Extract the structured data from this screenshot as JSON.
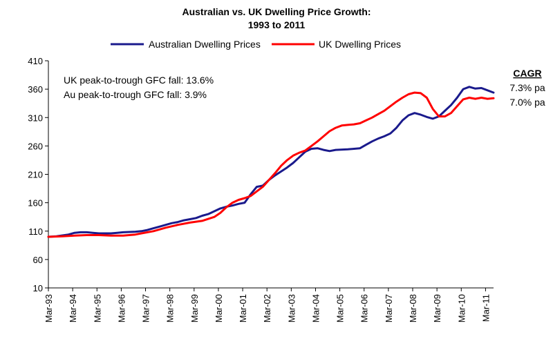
{
  "chart_data": {
    "type": "line",
    "title": "Australian vs. UK  Dwelling Price Growth:",
    "subtitle": "1993 to 2011",
    "xlabel": "",
    "ylabel": "",
    "ylim": [
      10,
      410
    ],
    "yticks": [
      10,
      60,
      110,
      160,
      210,
      260,
      310,
      360,
      410
    ],
    "xticks": [
      "Mar-93",
      "Mar-94",
      "Mar-95",
      "Mar-96",
      "Mar-97",
      "Mar-98",
      "Mar-99",
      "Mar-00",
      "Mar-01",
      "Mar-02",
      "Mar-03",
      "Mar-04",
      "Mar-05",
      "Mar-06",
      "Mar-07",
      "Mar-08",
      "Mar-09",
      "Mar-10",
      "Mar-11"
    ],
    "xrange": [
      1993.17,
      2011.5
    ],
    "legend": "top",
    "grid": false,
    "series": [
      {
        "name": "Australian Dwelling Prices",
        "color": "#1a1a8c",
        "points": [
          [
            1993.17,
            100
          ],
          [
            1993.5,
            101
          ],
          [
            1994.0,
            104
          ],
          [
            1994.25,
            107
          ],
          [
            1994.5,
            108
          ],
          [
            1994.75,
            108
          ],
          [
            1995.0,
            107
          ],
          [
            1995.25,
            106
          ],
          [
            1995.75,
            106
          ],
          [
            1996.0,
            107
          ],
          [
            1996.25,
            108
          ],
          [
            1996.75,
            109
          ],
          [
            1997.0,
            110
          ],
          [
            1997.25,
            112
          ],
          [
            1997.5,
            115
          ],
          [
            1997.75,
            118
          ],
          [
            1998.0,
            121
          ],
          [
            1998.25,
            124
          ],
          [
            1998.5,
            126
          ],
          [
            1998.75,
            129
          ],
          [
            1999.0,
            131
          ],
          [
            1999.25,
            133
          ],
          [
            1999.5,
            137
          ],
          [
            1999.75,
            140
          ],
          [
            2000.0,
            145
          ],
          [
            2000.25,
            150
          ],
          [
            2000.5,
            153
          ],
          [
            2000.75,
            155
          ],
          [
            2001.0,
            158
          ],
          [
            2001.25,
            160
          ],
          [
            2001.5,
            175
          ],
          [
            2001.75,
            188
          ],
          [
            2002.0,
            190
          ],
          [
            2002.25,
            200
          ],
          [
            2002.5,
            208
          ],
          [
            2002.75,
            215
          ],
          [
            2003.0,
            222
          ],
          [
            2003.25,
            230
          ],
          [
            2003.5,
            240
          ],
          [
            2003.75,
            250
          ],
          [
            2004.0,
            255
          ],
          [
            2004.25,
            256
          ],
          [
            2004.5,
            253
          ],
          [
            2004.75,
            251
          ],
          [
            2005.0,
            253
          ],
          [
            2005.5,
            254
          ],
          [
            2006.0,
            256
          ],
          [
            2006.25,
            262
          ],
          [
            2006.5,
            268
          ],
          [
            2006.75,
            273
          ],
          [
            2007.0,
            277
          ],
          [
            2007.25,
            282
          ],
          [
            2007.5,
            292
          ],
          [
            2007.75,
            305
          ],
          [
            2008.0,
            314
          ],
          [
            2008.25,
            318
          ],
          [
            2008.5,
            315
          ],
          [
            2008.75,
            311
          ],
          [
            2009.0,
            308
          ],
          [
            2009.25,
            312
          ],
          [
            2009.5,
            322
          ],
          [
            2009.75,
            332
          ],
          [
            2010.0,
            345
          ],
          [
            2010.25,
            360
          ],
          [
            2010.5,
            364
          ],
          [
            2010.75,
            361
          ],
          [
            2011.0,
            362
          ],
          [
            2011.25,
            358
          ],
          [
            2011.5,
            354
          ]
        ]
      },
      {
        "name": "UK Dwelling Prices",
        "color": "#ff0000",
        "points": [
          [
            1993.17,
            100
          ],
          [
            1993.75,
            101
          ],
          [
            1994.25,
            102
          ],
          [
            1994.75,
            103
          ],
          [
            1995.25,
            103
          ],
          [
            1995.75,
            102
          ],
          [
            1996.25,
            102
          ],
          [
            1996.75,
            104
          ],
          [
            1997.0,
            106
          ],
          [
            1997.5,
            110
          ],
          [
            1998.0,
            116
          ],
          [
            1998.5,
            121
          ],
          [
            1999.0,
            125
          ],
          [
            1999.5,
            128
          ],
          [
            2000.0,
            135
          ],
          [
            2000.25,
            142
          ],
          [
            2000.5,
            152
          ],
          [
            2000.75,
            160
          ],
          [
            2001.0,
            165
          ],
          [
            2001.25,
            168
          ],
          [
            2001.5,
            172
          ],
          [
            2001.75,
            180
          ],
          [
            2002.0,
            188
          ],
          [
            2002.25,
            200
          ],
          [
            2002.5,
            212
          ],
          [
            2002.75,
            225
          ],
          [
            2003.0,
            235
          ],
          [
            2003.25,
            243
          ],
          [
            2003.5,
            248
          ],
          [
            2003.75,
            252
          ],
          [
            2004.0,
            260
          ],
          [
            2004.25,
            268
          ],
          [
            2004.5,
            277
          ],
          [
            2004.75,
            286
          ],
          [
            2005.0,
            292
          ],
          [
            2005.25,
            296
          ],
          [
            2005.5,
            297
          ],
          [
            2005.75,
            298
          ],
          [
            2006.0,
            300
          ],
          [
            2006.25,
            305
          ],
          [
            2006.5,
            310
          ],
          [
            2006.75,
            316
          ],
          [
            2007.0,
            322
          ],
          [
            2007.25,
            330
          ],
          [
            2007.5,
            338
          ],
          [
            2007.75,
            345
          ],
          [
            2008.0,
            351
          ],
          [
            2008.25,
            354
          ],
          [
            2008.5,
            353
          ],
          [
            2008.75,
            345
          ],
          [
            2009.0,
            325
          ],
          [
            2009.25,
            312
          ],
          [
            2009.5,
            312
          ],
          [
            2009.75,
            318
          ],
          [
            2010.0,
            330
          ],
          [
            2010.25,
            342
          ],
          [
            2010.5,
            345
          ],
          [
            2010.75,
            343
          ],
          [
            2011.0,
            345
          ],
          [
            2011.25,
            343
          ],
          [
            2011.5,
            344
          ]
        ]
      }
    ],
    "annotations": [
      "UK peak-to-trough GFC fall: 13.6%",
      "Au peak-to-trough GFC fall: 3.9%"
    ],
    "cagr": {
      "heading": "CAGR",
      "values": [
        "7.3% pa",
        "7.0% pa"
      ]
    }
  }
}
